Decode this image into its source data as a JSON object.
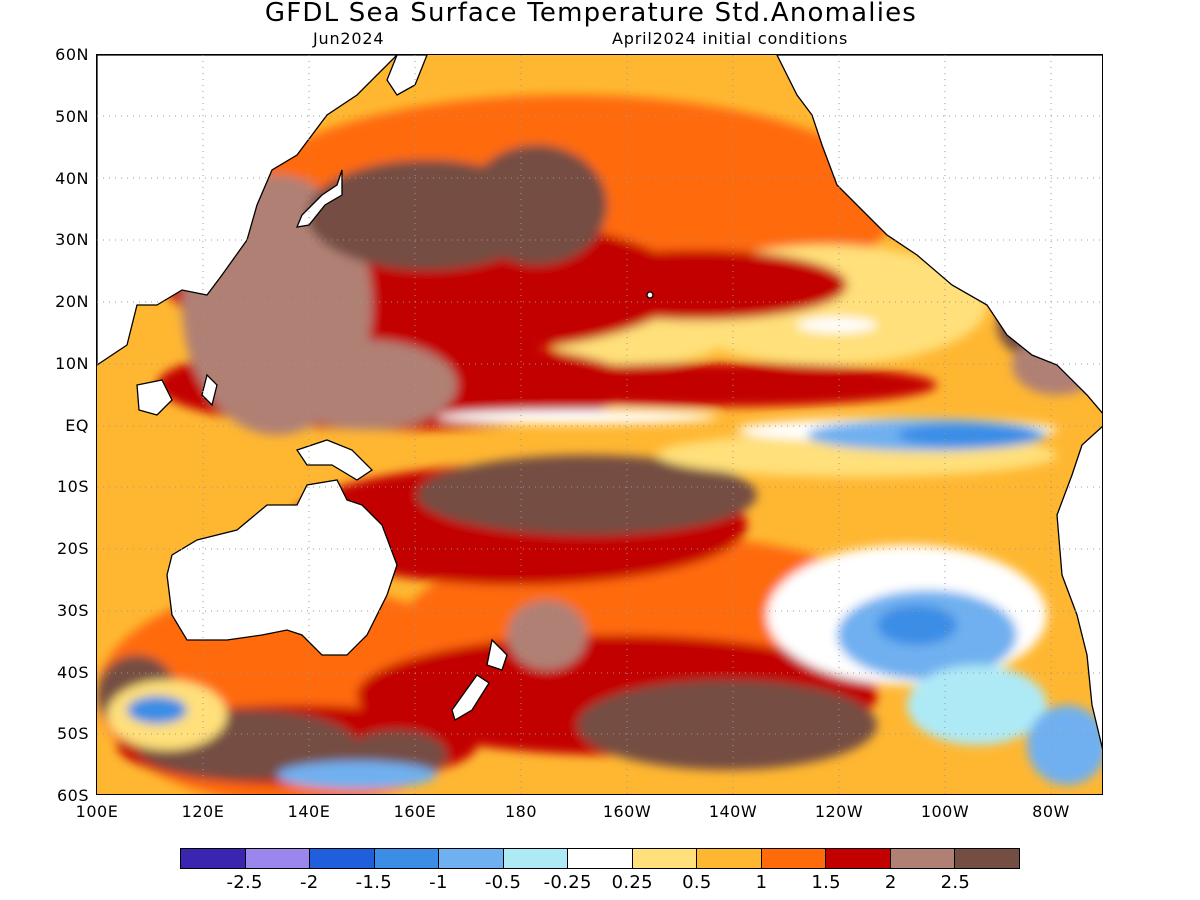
{
  "title": "GFDL Sea Surface Temperature Std.Anomalies",
  "subtitle_left": "Jun2024",
  "subtitle_right": "April2024 initial conditions",
  "axes": {
    "lat_labels": [
      "60N",
      "50N",
      "40N",
      "30N",
      "20N",
      "10N",
      "EQ",
      "10S",
      "20S",
      "30S",
      "40S",
      "50S",
      "60S"
    ],
    "lon_labels": [
      "100E",
      "120E",
      "140E",
      "160E",
      "180",
      "160W",
      "140W",
      "120W",
      "100W",
      "80W"
    ],
    "lat_range": [
      -60,
      60
    ],
    "lon_range": [
      100,
      290
    ],
    "grid": "dotted"
  },
  "colorbar": {
    "colors": [
      "#3a25b0",
      "#9b86ee",
      "#1f5fdc",
      "#3b8de6",
      "#6fb0f0",
      "#aeeaf6",
      "#ffffff",
      "#ffe07a",
      "#ffb732",
      "#ff6a0a",
      "#c20000",
      "#b08074",
      "#744e43"
    ],
    "labels": [
      "-2.5",
      "-2",
      "-1.5",
      "-1",
      "-0.5",
      "-0.25",
      "0.25",
      "0.5",
      "1",
      "1.5",
      "2",
      "2.5"
    ]
  },
  "colors": {
    "land": "#ffffff",
    "coastline": "#000000"
  }
}
